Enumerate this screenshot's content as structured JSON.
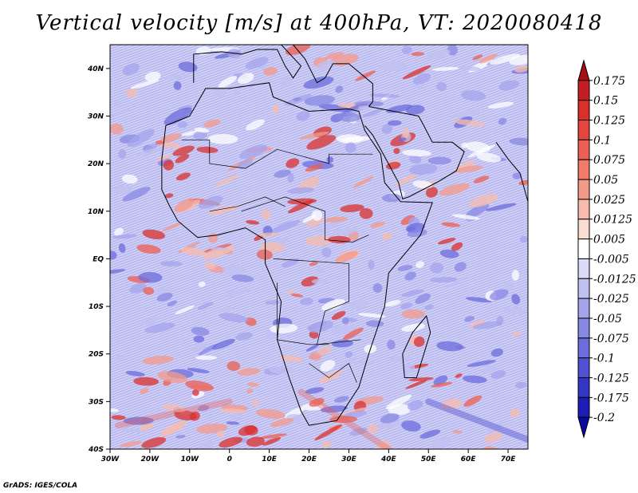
{
  "title": "Vertical velocity [m/s] at 400hPa, VT: 2020080418",
  "credit": "GrADS: IGES/COLA",
  "map": {
    "lon_range": [
      -30,
      75
    ],
    "lat_range": [
      -40,
      45
    ],
    "lon_ticks": [
      {
        "value": -30,
        "label": "30W"
      },
      {
        "value": -20,
        "label": "20W"
      },
      {
        "value": -10,
        "label": "10W"
      },
      {
        "value": 0,
        "label": "0"
      },
      {
        "value": 10,
        "label": "10E"
      },
      {
        "value": 20,
        "label": "20E"
      },
      {
        "value": 30,
        "label": "30E"
      },
      {
        "value": 40,
        "label": "40E"
      },
      {
        "value": 50,
        "label": "50E"
      },
      {
        "value": 60,
        "label": "60E"
      },
      {
        "value": 70,
        "label": "70E"
      }
    ],
    "lat_ticks": [
      {
        "value": 40,
        "label": "40N"
      },
      {
        "value": 30,
        "label": "30N"
      },
      {
        "value": 20,
        "label": "20N"
      },
      {
        "value": 10,
        "label": "10N"
      },
      {
        "value": 0,
        "label": "EQ"
      },
      {
        "value": -10,
        "label": "10S"
      },
      {
        "value": -20,
        "label": "20S"
      },
      {
        "value": -30,
        "label": "30S"
      },
      {
        "value": -40,
        "label": "40S"
      }
    ]
  },
  "colorbar": {
    "levels": [
      "0.175",
      "0.15",
      "0.125",
      "0.1",
      "0.075",
      "0.05",
      "0.025",
      "0.0125",
      "0.005",
      "-0.005",
      "-0.0125",
      "-0.025",
      "-0.05",
      "-0.075",
      "-0.1",
      "-0.125",
      "-0.175",
      "-0.2"
    ],
    "colors": [
      "#a50f15",
      "#c41e24",
      "#d9302c",
      "#e4463d",
      "#ec5f52",
      "#f17c6c",
      "#f49a89",
      "#f7bcae",
      "#fbdcd3",
      "#ffffff",
      "#dcdcf8",
      "#c0c0f2",
      "#a4a4ec",
      "#8888e4",
      "#6c6cdc",
      "#5050d2",
      "#3434c6",
      "#1c1cb6",
      "#0a0aa0"
    ]
  }
}
